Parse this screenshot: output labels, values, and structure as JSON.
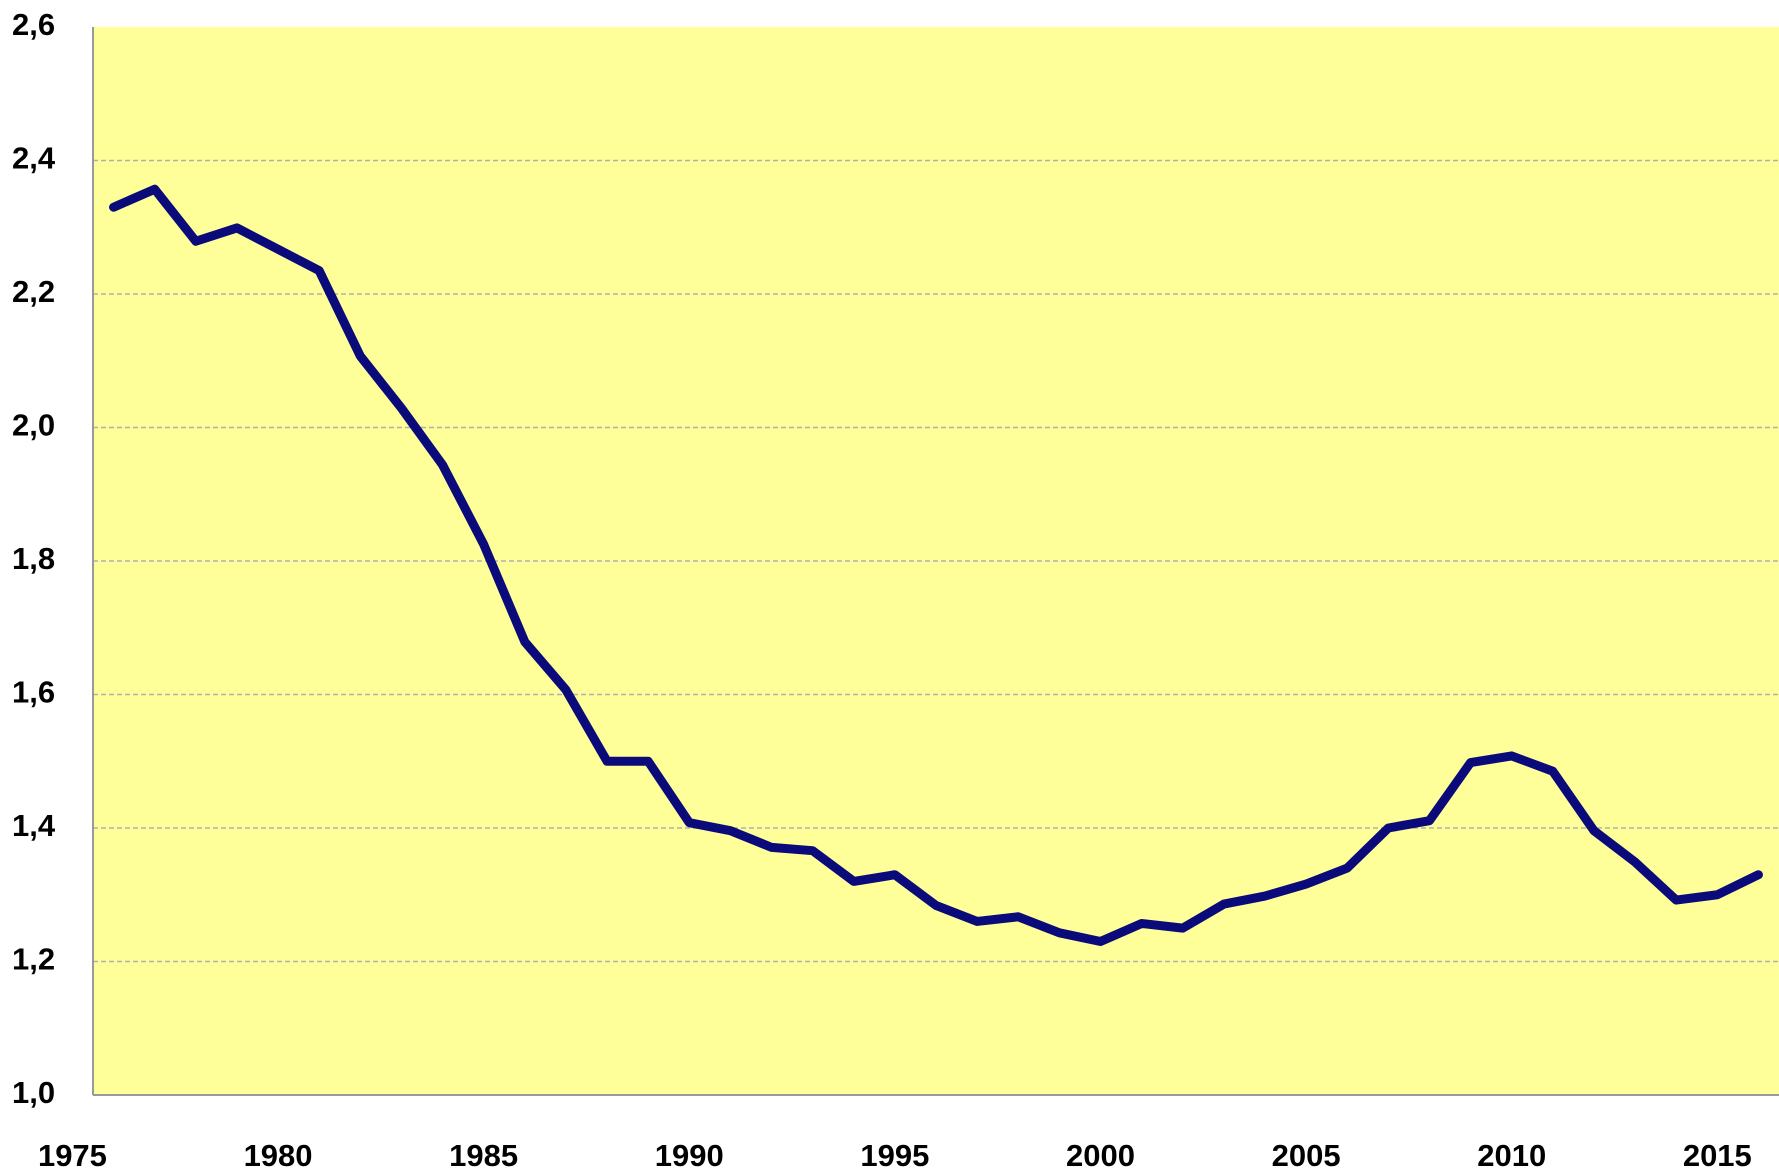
{
  "chart_data": {
    "type": "line",
    "x": [
      1976,
      1977,
      1978,
      1979,
      1980,
      1981,
      1982,
      1983,
      1984,
      1985,
      1986,
      1987,
      1988,
      1989,
      1990,
      1991,
      1992,
      1993,
      1994,
      1995,
      1996,
      1997,
      1998,
      1999,
      2000,
      2001,
      2002,
      2003,
      2004,
      2005,
      2006,
      2007,
      2008,
      2009,
      2010,
      2011,
      2012,
      2013,
      2014,
      2015,
      2016
    ],
    "series": [
      {
        "color": "#0a0a7a",
        "values": [
          2.33,
          2.357,
          2.279,
          2.299,
          2.267,
          2.235,
          2.107,
          2.029,
          1.944,
          1.825,
          1.679,
          1.607,
          1.5,
          1.5,
          1.408,
          1.396,
          1.371,
          1.366,
          1.32,
          1.33,
          1.284,
          1.26,
          1.267,
          1.243,
          1.23,
          1.257,
          1.25,
          1.286,
          1.298,
          1.316,
          1.34,
          1.4,
          1.411,
          1.498,
          1.508,
          1.485,
          1.396,
          1.349,
          1.292,
          1.3,
          1.33
        ]
      }
    ],
    "xlim": [
      1975.5,
      2016.5
    ],
    "xticks": [
      1975,
      1980,
      1985,
      1990,
      1995,
      2000,
      2005,
      2010,
      2015
    ],
    "ylim": [
      1.0,
      2.6
    ],
    "yticks": [
      {
        "value": 1.0,
        "label": "1,0"
      },
      {
        "value": 1.2,
        "label": "1,2"
      },
      {
        "value": 1.4,
        "label": "1,4"
      },
      {
        "value": 1.6,
        "label": "1,6"
      },
      {
        "value": 1.8,
        "label": "1,8"
      },
      {
        "value": 2.0,
        "label": "2,0"
      },
      {
        "value": 2.2,
        "label": "2,2"
      },
      {
        "value": 2.4,
        "label": "2,4"
      },
      {
        "value": 2.6,
        "label": "2,6"
      }
    ],
    "grid": true,
    "background": "#ffff99"
  }
}
